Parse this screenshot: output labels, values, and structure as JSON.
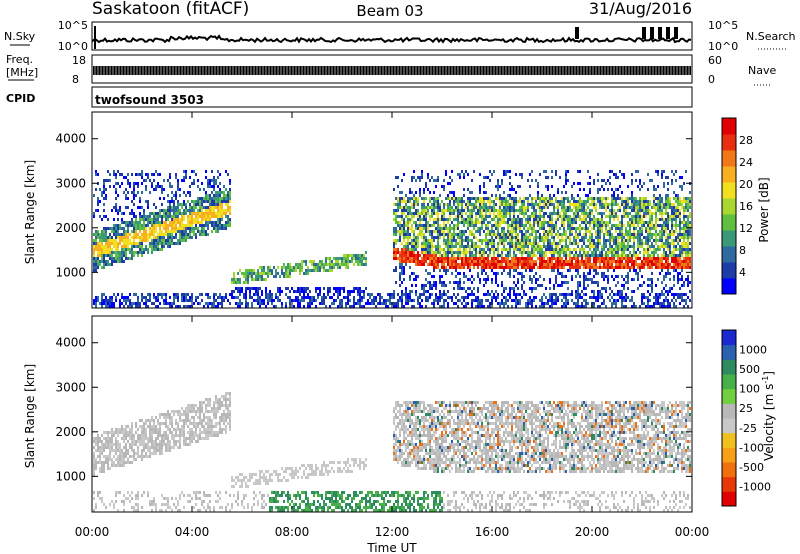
{
  "header": {
    "title": "Saskatoon (fitACF)",
    "beam": "Beam 03",
    "date": "31/Aug/2016"
  },
  "noise_panel": {
    "left_label": "N.Sky",
    "right_label": "N.Search",
    "left_ticks": [
      "10^5",
      "10^0"
    ],
    "right_ticks": [
      "10^5",
      "10^0"
    ]
  },
  "freq_panel": {
    "left_label_1": "Freq.",
    "left_label_2": "[MHz]",
    "right_label": "Nave",
    "left_ticks": [
      "18",
      "8"
    ],
    "right_ticks": [
      "60",
      "0"
    ]
  },
  "cpid_panel": {
    "label": "CPID",
    "program": "twofsound 3503"
  },
  "chart_data": [
    {
      "type": "heatmap",
      "name": "power",
      "ylabel": "Slant Range [km]",
      "yticks": [
        1000,
        2000,
        3000,
        4000
      ],
      "ylim": [
        200,
        4600
      ],
      "xlim": [
        0,
        24
      ],
      "colorbar": {
        "label": "Power [dB]",
        "ticks": [
          "4",
          "8",
          "12",
          "16",
          "20",
          "24",
          "28"
        ],
        "colors": [
          "#0000ff",
          "#1e3ca8",
          "#2e6aa0",
          "#3a9a78",
          "#5fc040",
          "#a8d830",
          "#f0e020",
          "#f8b020",
          "#f07818",
          "#e83010",
          "#e00000"
        ]
      }
    },
    {
      "type": "heatmap",
      "name": "velocity",
      "ylabel": "Slant Range [km]",
      "yticks": [
        1000,
        2000,
        3000,
        4000
      ],
      "ylim": [
        200,
        4600
      ],
      "xlim": [
        0,
        24
      ],
      "colorbar": {
        "label": "Velocity",
        "units": "[m s",
        "units_sup": "-1",
        "units_end": "]",
        "ticks": [
          "1000",
          "500",
          "100",
          "25",
          "-25",
          "-100",
          "-500",
          "-1000"
        ],
        "colors": [
          "#1a2ad0",
          "#2a60b0",
          "#2e8a60",
          "#48b048",
          "#70d040",
          "#b8b8b8",
          "#c8c8c8",
          "#f0c020",
          "#f8a018",
          "#f07010",
          "#e83808",
          "#e00000"
        ]
      }
    }
  ],
  "xaxis": {
    "ticks": [
      "00:00",
      "04:00",
      "08:00",
      "12:00",
      "16:00",
      "20:00",
      "00:00"
    ],
    "label": "Time UT"
  }
}
